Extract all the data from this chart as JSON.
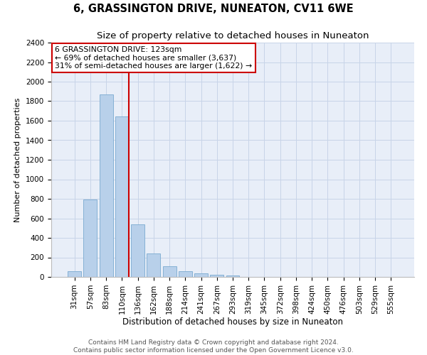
{
  "title": "6, GRASSINGTON DRIVE, NUNEATON, CV11 6WE",
  "subtitle": "Size of property relative to detached houses in Nuneaton",
  "xlabel": "Distribution of detached houses by size in Nuneaton",
  "ylabel": "Number of detached properties",
  "categories": [
    "31sqm",
    "57sqm",
    "83sqm",
    "110sqm",
    "136sqm",
    "162sqm",
    "188sqm",
    "214sqm",
    "241sqm",
    "267sqm",
    "293sqm",
    "319sqm",
    "345sqm",
    "372sqm",
    "398sqm",
    "424sqm",
    "450sqm",
    "476sqm",
    "503sqm",
    "529sqm",
    "555sqm"
  ],
  "values": [
    60,
    790,
    1870,
    1645,
    535,
    238,
    108,
    60,
    35,
    20,
    15,
    0,
    0,
    0,
    0,
    0,
    0,
    0,
    0,
    0,
    0
  ],
  "bar_color": "#b8d0ea",
  "bar_edge_color": "#7aaad0",
  "vline_color": "#cc0000",
  "vline_x": 3.42,
  "annotation_line1": "6 GRASSINGTON DRIVE: 123sqm",
  "annotation_line2": "← 69% of detached houses are smaller (3,637)",
  "annotation_line3": "31% of semi-detached houses are larger (1,622) →",
  "annotation_box_color": "#ffffff",
  "annotation_box_edge": "#cc0000",
  "ylim": [
    0,
    2400
  ],
  "yticks": [
    0,
    200,
    400,
    600,
    800,
    1000,
    1200,
    1400,
    1600,
    1800,
    2000,
    2200,
    2400
  ],
  "grid_color": "#c8d4e8",
  "bg_color": "#e8eef8",
  "footer_line1": "Contains HM Land Registry data © Crown copyright and database right 2024.",
  "footer_line2": "Contains public sector information licensed under the Open Government Licence v3.0.",
  "title_fontsize": 10.5,
  "subtitle_fontsize": 9.5,
  "ylabel_fontsize": 8,
  "xlabel_fontsize": 8.5,
  "tick_fontsize": 7.5,
  "annotation_fontsize": 7.8,
  "footer_fontsize": 6.5
}
